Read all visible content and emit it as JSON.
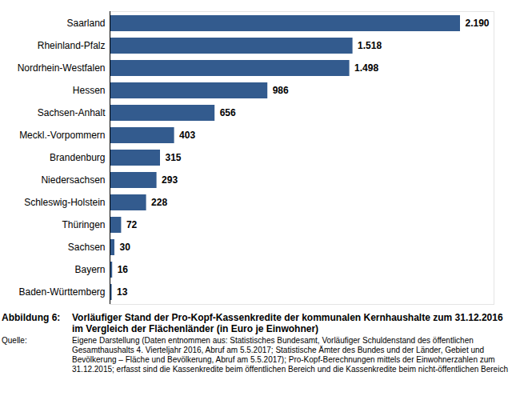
{
  "chart_data": {
    "type": "bar",
    "orientation": "horizontal",
    "figure_label": "Abbildung 6:",
    "title": "Vorläufiger Stand der Pro-Kopf-Kassenkredite der kommunalen Kernhaushalte zum 31.12.2016 im Vergleich der Flächenländer (in Euro je Einwohner)",
    "source_label": "Quelle:",
    "source": "Eigene Darstellung (Daten entnommen aus: Statistisches Bundesamt, Vorläufiger Schuldenstand des öffentlichen Gesamthaushalts 4. Vierteljahr 2016, Abruf am 5.5.2017; Statistische Ämter des Bundes und der Länder, Gebiet und Bevölkerung – Fläche und Bevölkerung, Abruf am 5.5.2017); Pro-Kopf-Berechnungen mittels der Einwohnerzahlen zum 31.12.2015; erfasst sind die Kassenkredite beim öffentlichen Bereich und die Kassenkredite beim nicht-öffentlichen Bereich",
    "categories": [
      "Saarland",
      "Rheinland-Pfalz",
      "Nordrhein-Westfalen",
      "Hessen",
      "Sachsen-Anhalt",
      "Meckl.-Vorpommern",
      "Brandenburg",
      "Niedersachsen",
      "Schleswig-Holstein",
      "Thüringen",
      "Sachsen",
      "Bayern",
      "Baden-Württemberg"
    ],
    "values": [
      2190,
      1518,
      1498,
      986,
      656,
      403,
      315,
      293,
      228,
      72,
      30,
      16,
      13
    ],
    "value_labels": [
      "2.190",
      "1.518",
      "1.498",
      "986",
      "656",
      "403",
      "315",
      "293",
      "228",
      "72",
      "30",
      "16",
      "13"
    ],
    "color": "#335b8e",
    "xlim": [
      0,
      2400
    ],
    "data_labels": true,
    "tick_labels": "y",
    "grid": false
  }
}
